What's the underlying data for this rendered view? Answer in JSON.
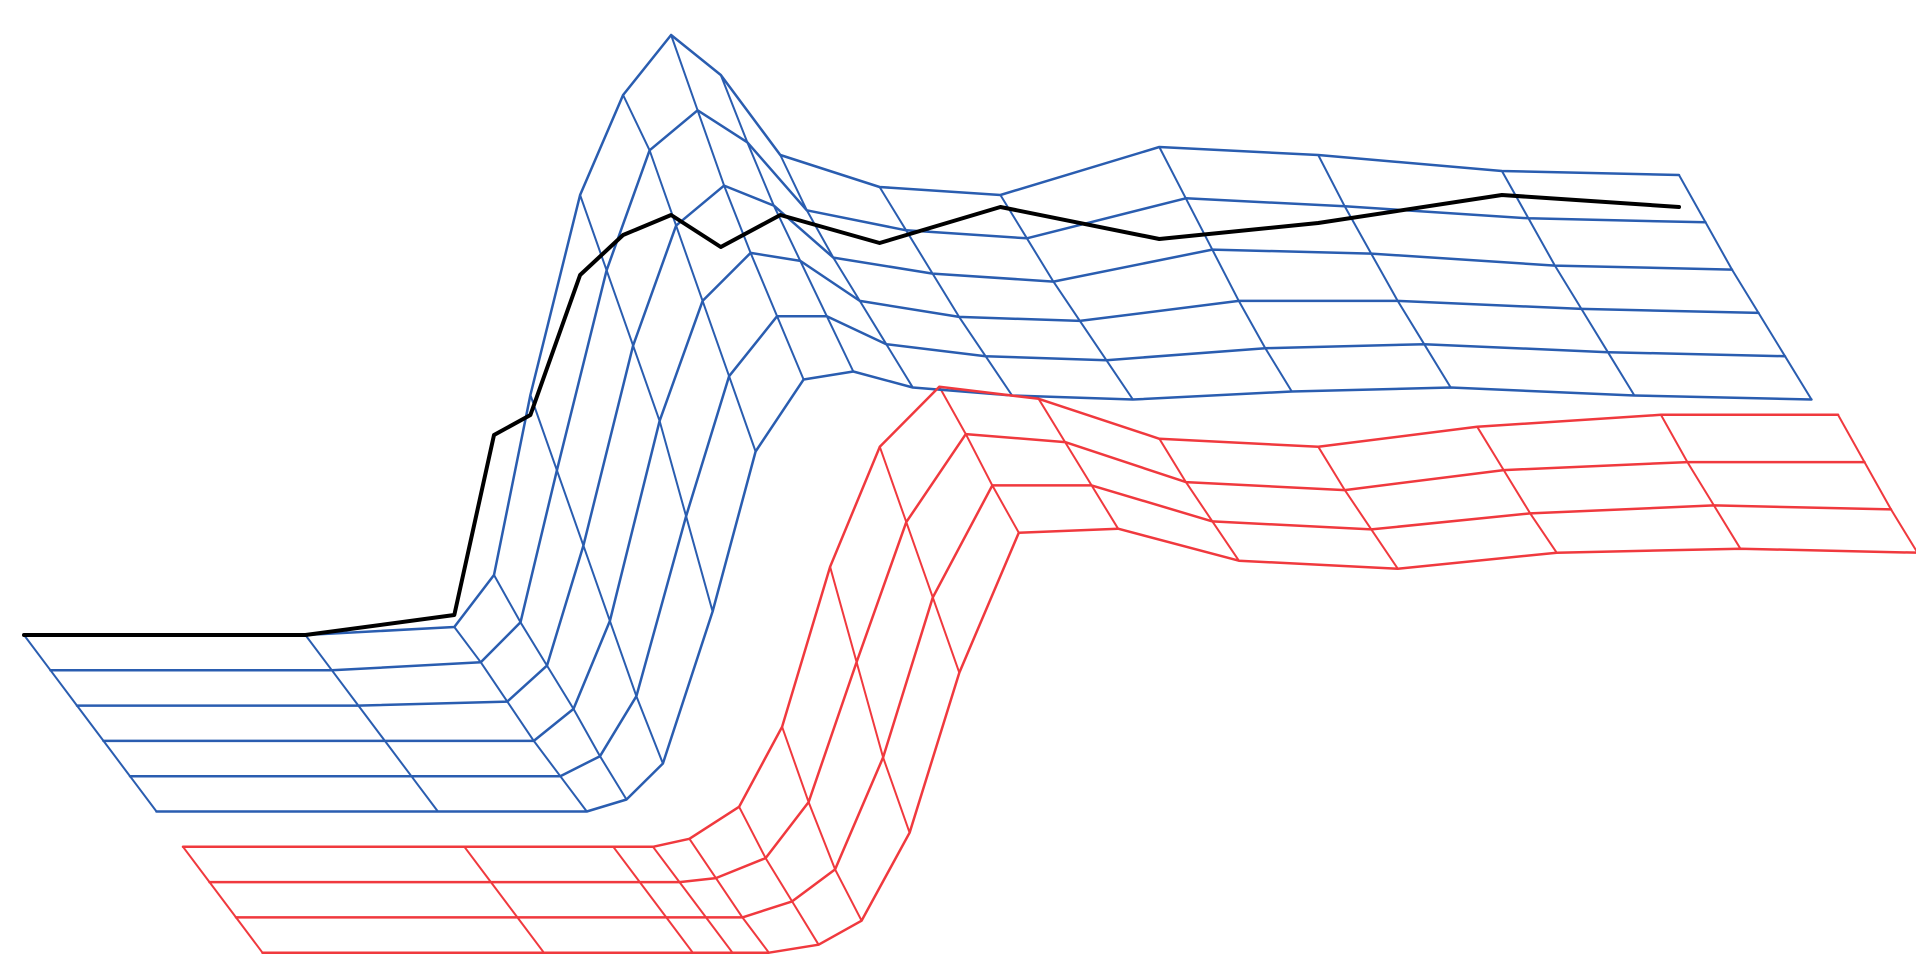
{
  "chart_data": {
    "type": "surface",
    "x": [
      0,
      17,
      26,
      28.4,
      30.6,
      33.6,
      36.2,
      39.1,
      42.1,
      45.7,
      51.7,
      59,
      68.6,
      78.2,
      89.3,
      100
    ],
    "xlim": [
      0,
      100
    ],
    "series": [
      {
        "color": "#2a5db0",
        "values": [
          [
            0,
            0,
            0.02,
            0.15,
            0.6,
            1.1,
            1.35,
            1.5,
            1.4,
            1.2,
            1.12,
            1.1,
            1.22,
            1.2,
            1.16,
            1.15
          ],
          [
            0,
            0,
            0.02,
            0.12,
            0.5,
            1.0,
            1.3,
            1.4,
            1.32,
            1.15,
            1.1,
            1.08,
            1.18,
            1.16,
            1.13,
            1.12
          ],
          [
            0,
            0,
            0.01,
            0.1,
            0.4,
            0.9,
            1.2,
            1.3,
            1.25,
            1.12,
            1.08,
            1.06,
            1.14,
            1.13,
            1.1,
            1.09
          ],
          [
            0,
            0,
            0,
            0.08,
            0.3,
            0.8,
            1.1,
            1.22,
            1.2,
            1.1,
            1.06,
            1.05,
            1.1,
            1.1,
            1.08,
            1.07
          ],
          [
            0,
            0,
            0,
            0.05,
            0.2,
            0.65,
            1.0,
            1.15,
            1.15,
            1.08,
            1.05,
            1.04,
            1.07,
            1.08,
            1.06,
            1.05
          ],
          [
            0,
            0,
            0,
            0.03,
            0.12,
            0.5,
            0.9,
            1.08,
            1.1,
            1.06,
            1.04,
            1.03,
            1.05,
            1.06,
            1.04,
            1.03
          ]
        ]
      },
      {
        "color": "#f0393e",
        "values": [
          [
            0,
            0,
            0,
            0,
            0.02,
            0.1,
            0.3,
            0.7,
            1.0,
            1.15,
            1.12,
            1.02,
            1.0,
            1.05,
            1.08,
            1.08
          ],
          [
            0,
            0,
            0,
            0,
            0.01,
            0.06,
            0.2,
            0.55,
            0.9,
            1.12,
            1.1,
            1.0,
            0.98,
            1.03,
            1.05,
            1.05
          ],
          [
            0,
            0,
            0,
            0,
            0,
            0.04,
            0.12,
            0.4,
            0.8,
            1.08,
            1.08,
            0.99,
            0.97,
            1.01,
            1.03,
            1.02
          ],
          [
            0,
            0,
            0,
            0,
            0,
            0.02,
            0.08,
            0.3,
            0.7,
            1.05,
            1.06,
            0.98,
            0.96,
            1.0,
            1.01,
            1.0
          ]
        ]
      }
    ],
    "line": {
      "color": "#000000",
      "values": [
        0,
        0,
        0.05,
        0.5,
        0.55,
        0.9,
        1.0,
        1.05,
        0.97,
        1.05,
        0.98,
        1.07,
        0.99,
        1.03,
        1.1,
        1.07
      ]
    }
  }
}
